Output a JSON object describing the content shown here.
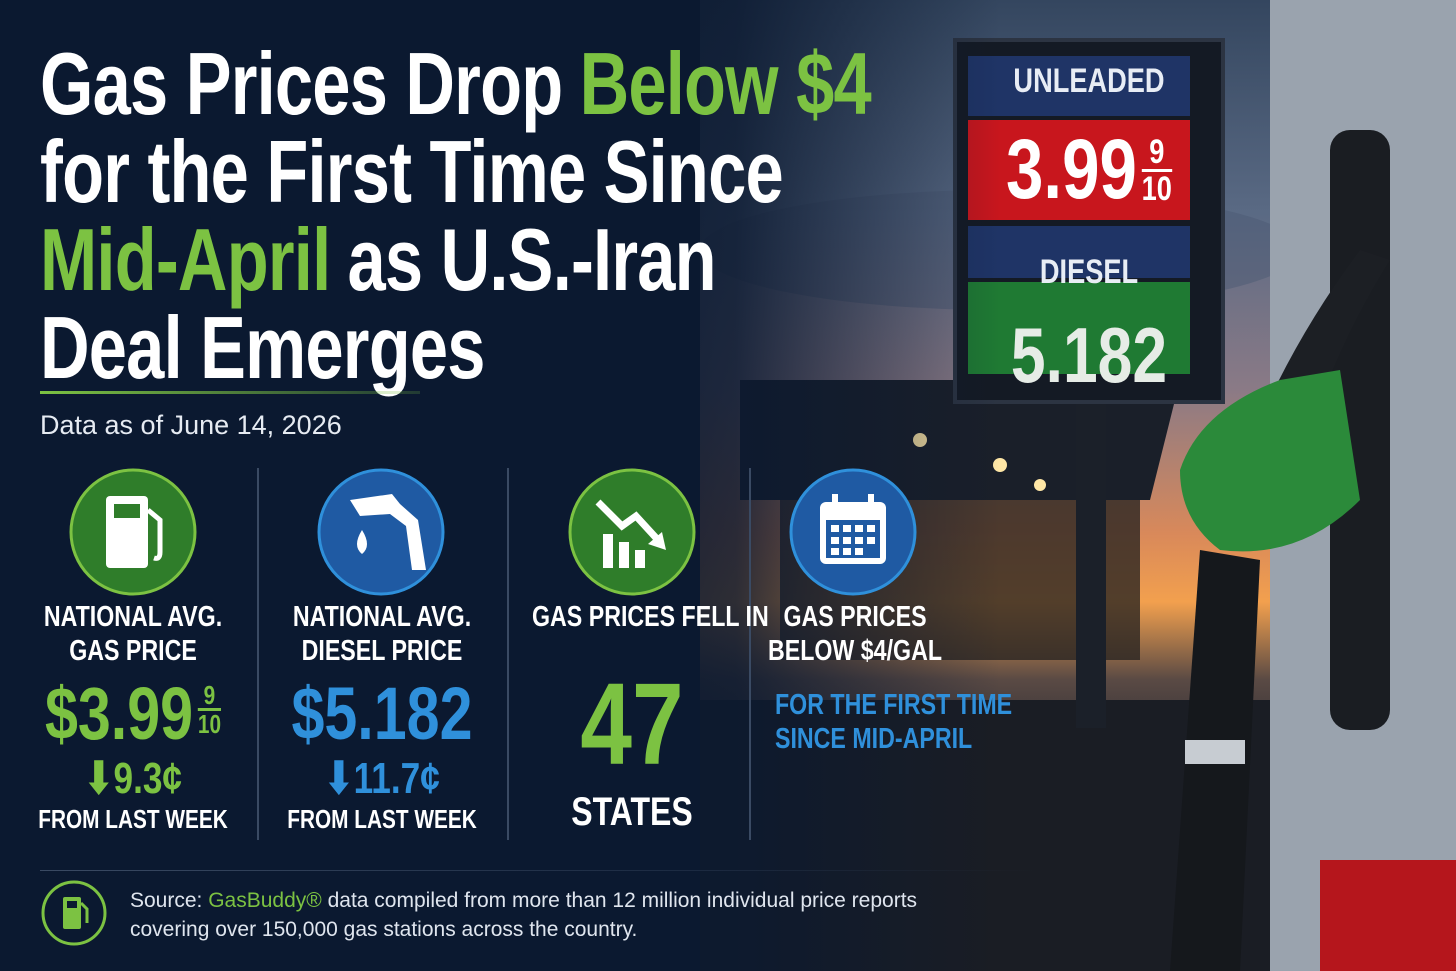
{
  "title": {
    "lines": [
      [
        {
          "text": "Gas Prices Drop",
          "accent": false
        },
        {
          "text": "Below $4",
          "accent": true
        }
      ],
      [
        {
          "text": "for the First Time Since",
          "accent": false
        }
      ],
      [
        {
          "text": "Mid-April",
          "accent": true
        },
        {
          "text": "as U.S.-Iran",
          "accent": false
        }
      ],
      [
        {
          "text": "Deal Emerges",
          "accent": false
        }
      ]
    ]
  },
  "date": "Data as of June 14, 2026",
  "sign": {
    "unleaded_label": "UNLEADED",
    "unleaded_price": "3.99",
    "unleaded_fraction": [
      "9",
      "10"
    ],
    "diesel_label": "DIESEL",
    "diesel_price": "5.182"
  },
  "stats": [
    {
      "label": [
        "NATIONAL AVG.",
        "GAS PRICE"
      ],
      "value": "$3.99",
      "fraction": [
        "9",
        "10"
      ],
      "change": "9.3¢",
      "note": "FROM LAST WEEK"
    },
    {
      "label": [
        "NATIONAL AVG.",
        "DIESEL PRICE"
      ],
      "value": "$5.182",
      "change": "11.7¢",
      "note": "FROM LAST WEEK"
    },
    {
      "label": [
        "GAS PRICES FELL IN"
      ],
      "value": "47",
      "note": "STATES"
    },
    {
      "label": [
        "GAS PRICES",
        "BELOW $4/GAL"
      ],
      "highlight": [
        "FOR THE FIRST TIME",
        "SINCE MID-APRIL"
      ]
    }
  ],
  "source": {
    "prefix": "Source:",
    "brand": "GasBuddy®",
    "lines": [
      "data compiled from more than 12 million individual price reports",
      "covering over 150,000 gas stations across the country."
    ]
  }
}
